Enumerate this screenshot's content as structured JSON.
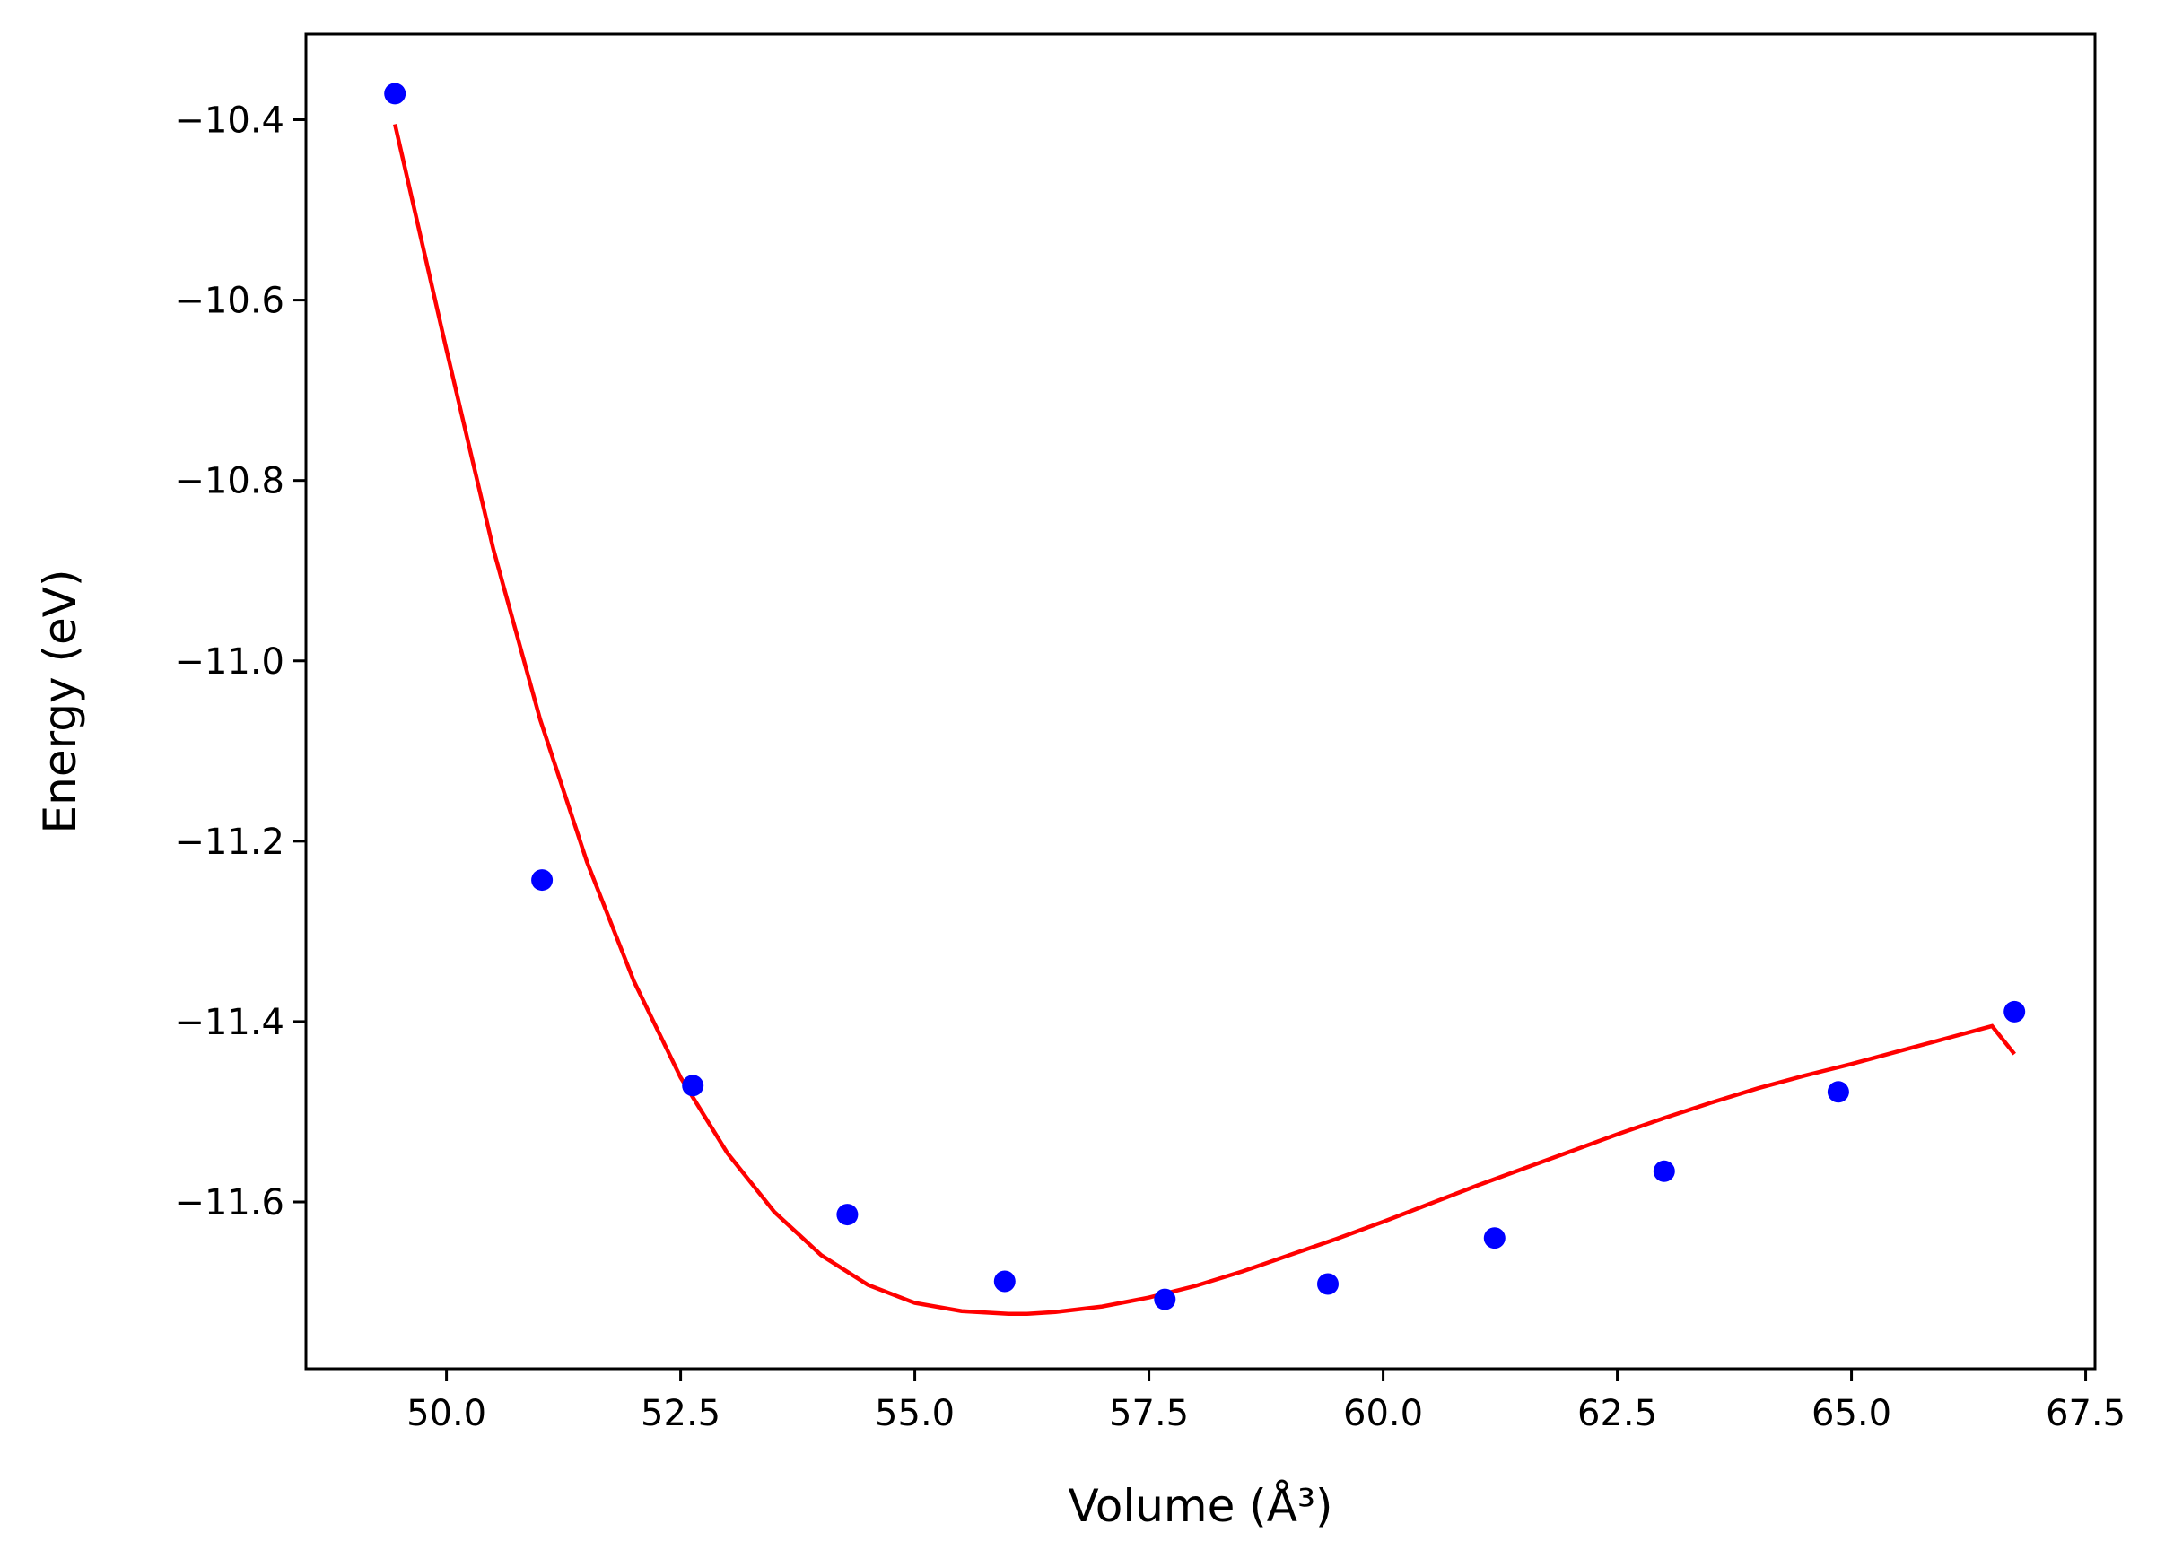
{
  "chart_data": {
    "type": "scatter",
    "xlabel": "Volume (Å³)",
    "ylabel": "Energy (eV)",
    "xlim": [
      48.5,
      67.6
    ],
    "ylim": [
      -11.785,
      -10.305
    ],
    "x_ticks": [
      {
        "value": 50.0,
        "label": "50.0"
      },
      {
        "value": 52.5,
        "label": "52.5"
      },
      {
        "value": 55.0,
        "label": "55.0"
      },
      {
        "value": 57.5,
        "label": "57.5"
      },
      {
        "value": 60.0,
        "label": "60.0"
      },
      {
        "value": 62.5,
        "label": "62.5"
      },
      {
        "value": 65.0,
        "label": "65.0"
      },
      {
        "value": 67.5,
        "label": "67.5"
      }
    ],
    "y_ticks": [
      {
        "value": -10.4,
        "label": "−10.4"
      },
      {
        "value": -10.6,
        "label": "−10.6"
      },
      {
        "value": -10.8,
        "label": "−10.8"
      },
      {
        "value": -11.0,
        "label": "−11.0"
      },
      {
        "value": -11.2,
        "label": "−11.2"
      },
      {
        "value": -11.4,
        "label": "−11.4"
      },
      {
        "value": -11.6,
        "label": "−11.6"
      }
    ],
    "grid": false,
    "series": [
      {
        "kind": "scatter",
        "color": "#0000ff",
        "x": [
          49.45,
          51.02,
          52.63,
          54.28,
          55.96,
          57.67,
          59.41,
          61.19,
          63.0,
          64.86,
          66.74
        ],
        "y": [
          -10.371,
          -11.243,
          -11.471,
          -11.614,
          -11.688,
          -11.708,
          -11.691,
          -11.64,
          -11.566,
          -11.478,
          -11.389
        ]
      },
      {
        "kind": "line",
        "color": "#ff0000",
        "x": [
          49.45,
          50.0,
          50.5,
          51.0,
          51.5,
          52.0,
          52.5,
          53.0,
          53.5,
          54.0,
          54.5,
          55.0,
          55.5,
          56.0,
          56.2,
          56.5,
          57.0,
          57.5,
          58.0,
          58.5,
          59.0,
          59.5,
          60.0,
          60.5,
          61.0,
          61.5,
          62.0,
          62.5,
          63.0,
          63.5,
          64.0,
          64.5,
          65.0,
          65.5,
          66.0,
          66.5,
          66.74
        ],
        "y": [
          -10.405,
          -10.655,
          -10.876,
          -11.065,
          -11.223,
          -11.355,
          -11.462,
          -11.546,
          -11.611,
          -11.659,
          -11.692,
          -11.712,
          -11.721,
          -11.724,
          -11.724,
          -11.722,
          -11.716,
          -11.706,
          -11.693,
          -11.677,
          -11.659,
          -11.641,
          -11.622,
          -11.602,
          -11.582,
          -11.563,
          -11.544,
          -11.525,
          -11.507,
          -11.49,
          -11.474,
          -11.46,
          -11.447,
          -11.433,
          -11.419,
          -11.405,
          -11.436
        ]
      }
    ]
  }
}
